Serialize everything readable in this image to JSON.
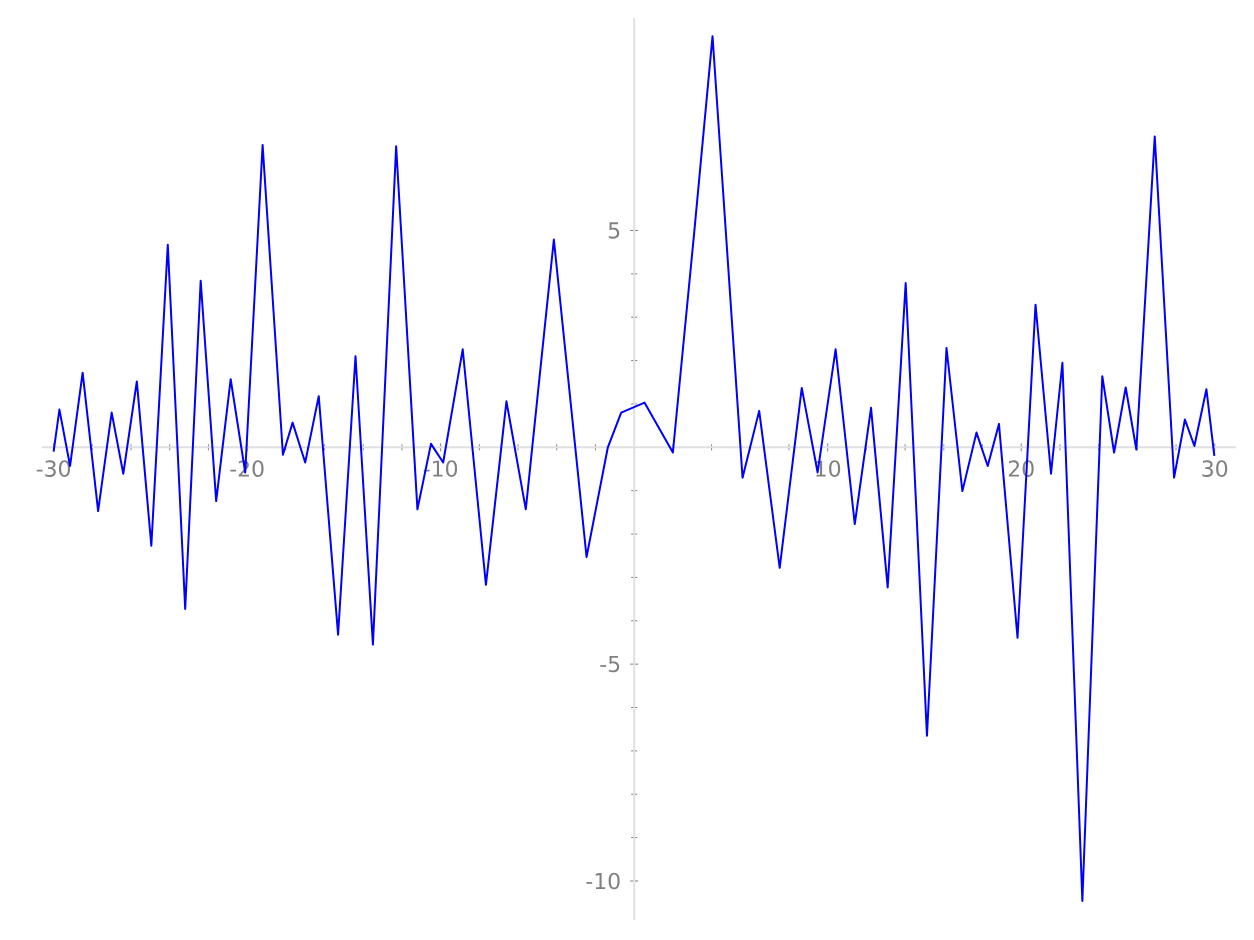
{
  "chart_data": {
    "type": "line",
    "color": "#0000ff",
    "marker": "none",
    "line_style": "solid",
    "grid": false,
    "xlim": [
      -30.6,
      31.1
    ],
    "ylim": [
      -10.9,
      9.9
    ],
    "xticks": [
      -30,
      -20,
      -10,
      {
        "value": 0,
        "label": null
      },
      10,
      20,
      30
    ],
    "yticks": [
      -10,
      -5,
      {
        "value": 0,
        "label": null
      },
      5
    ],
    "x": [
      -30.0,
      -29.7,
      -29.15,
      -28.5,
      -27.7,
      -27.0,
      -26.4,
      -25.7,
      -24.95,
      -24.1,
      -23.2,
      -22.4,
      -21.6,
      -20.85,
      -20.1,
      -19.2,
      -18.15,
      -17.65,
      -17.0,
      -16.3,
      -15.3,
      -14.4,
      -13.5,
      -12.3,
      -11.2,
      -10.5,
      -9.87,
      -8.86,
      -7.66,
      -6.6,
      -5.6,
      -4.15,
      -2.46,
      -1.36,
      -0.67,
      0.54,
      2.0,
      3.1,
      4.05,
      5.6,
      6.46,
      7.52,
      8.66,
      9.48,
      10.41,
      11.4,
      12.24,
      13.1,
      14.03,
      15.13,
      16.14,
      16.96,
      17.69,
      18.27,
      18.85,
      19.81,
      20.74,
      21.54,
      22.13,
      23.16,
      24.19,
      24.8,
      25.4,
      25.95,
      26.9,
      27.9,
      28.46,
      28.95,
      29.57,
      29.98
    ],
    "values": [
      -0.1,
      0.87,
      -0.43,
      1.72,
      -1.47,
      0.8,
      -0.61,
      1.52,
      -2.27,
      4.67,
      -3.73,
      3.84,
      -1.24,
      1.57,
      -0.58,
      6.97,
      -0.17,
      0.57,
      -0.35,
      1.18,
      -4.32,
      2.1,
      -4.55,
      6.94,
      -1.43,
      0.08,
      -0.35,
      2.26,
      -3.17,
      1.06,
      -1.43,
      4.79,
      -2.53,
      0.0,
      0.8,
      1.03,
      -0.12,
      4.94,
      9.48,
      -0.7,
      0.84,
      -2.78,
      1.37,
      -0.58,
      2.26,
      -1.77,
      0.91,
      -3.23,
      3.79,
      -6.65,
      2.29,
      -1.01,
      0.34,
      -0.43,
      0.54,
      -4.39,
      3.29,
      -0.61,
      1.95,
      -10.46,
      1.64,
      -0.12,
      1.38,
      -0.05,
      7.17,
      -0.7,
      0.64,
      0.03,
      1.34,
      -0.2
    ]
  }
}
